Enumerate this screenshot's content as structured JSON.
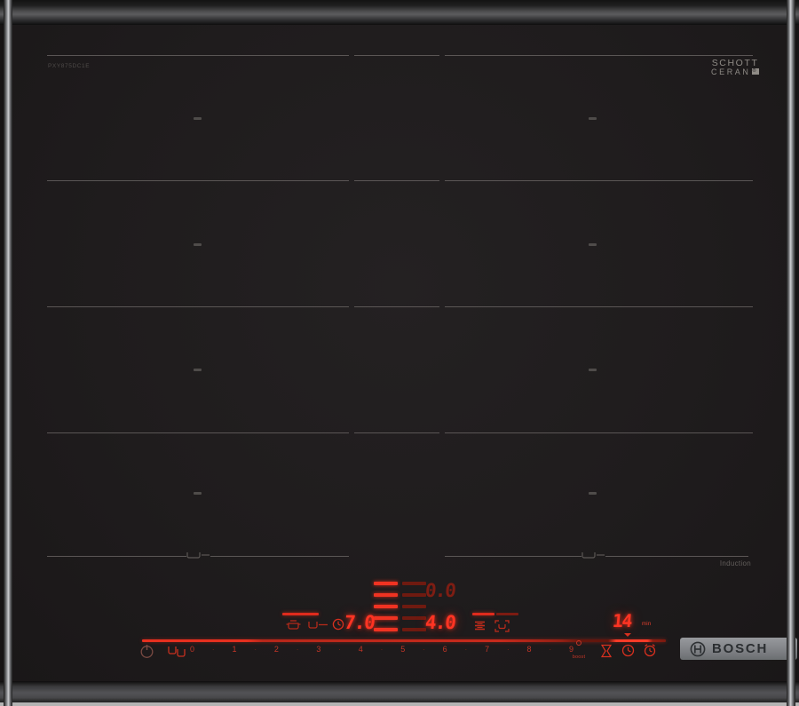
{
  "branding": {
    "model_number": "PXY875DC1E",
    "glass_brand_top": "SCHOTT",
    "glass_brand_bottom": "CERAN",
    "glass_brand_mark": "®",
    "induction_label": "Induction",
    "manufacturer_logo": "BOSCH"
  },
  "control_panel": {
    "left_zone_power": "7.0",
    "rear_zone_power": "0.0",
    "right_zone_power": "4.0",
    "timer_value": "14",
    "timer_unit": "min",
    "boost_label": "boost",
    "slider_levels": [
      "0",
      "1",
      "2",
      "3",
      "4",
      "5",
      "6",
      "7",
      "8",
      "9"
    ],
    "slider_separator": "·"
  },
  "icons": {
    "main_power": "standby-circle",
    "zone_select": "twin-pans",
    "keep_warm": "pot",
    "pan_transfer": "pan-with-arrow",
    "timer_small": "clock",
    "power_levels": "stacked-bars",
    "flex_zone": "pan-in-frame",
    "timer_program": "hourglass",
    "clock": "clock",
    "short_timer": "alarm-clock",
    "pan_position_marker": "pan-profile",
    "boost": "circle-dot"
  },
  "colors": {
    "led_bright": "#ff3423",
    "led_dim": "#7e1d13",
    "zone_line": "#6b6765",
    "label_gray": "#8f8b86",
    "surface": "#1e1b1c",
    "badge_gray": "#85878b"
  }
}
